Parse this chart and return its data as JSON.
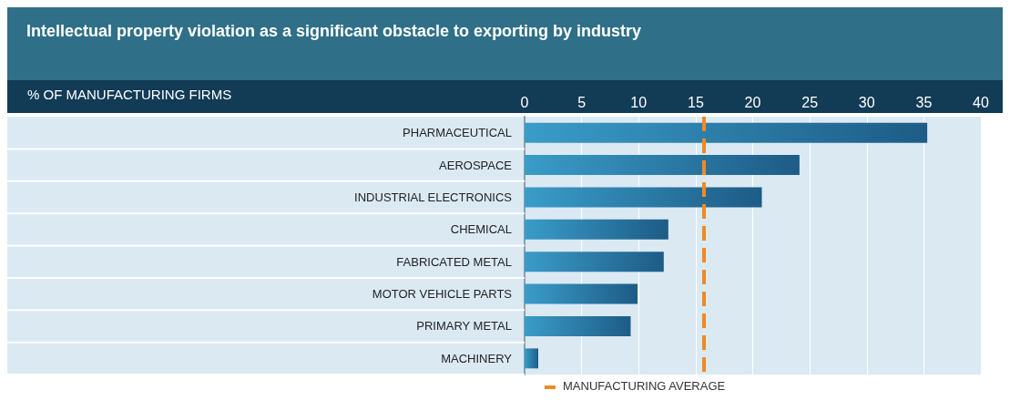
{
  "chart_data": {
    "type": "bar",
    "orientation": "horizontal",
    "title": "Intellectual property violation as a significant obstacle to exporting by industry",
    "annotations": [
      "% OF MANUFACTURING FIRMS"
    ],
    "categories": [
      "PHARMACEUTICAL",
      "AEROSPACE",
      "INDUSTRIAL ELECTRONICS",
      "CHEMICAL",
      "FABRICATED METAL",
      "MOTOR VEHICLE PARTS",
      "PRIMARY METAL",
      "MACHINERY"
    ],
    "values": [
      35.3,
      24.1,
      20.8,
      12.6,
      12.2,
      9.9,
      9.3,
      1.2
    ],
    "color": "#1d5c86",
    "xlim": [
      0,
      40
    ],
    "xticks": [
      0,
      5,
      10,
      15,
      20,
      25,
      30,
      35,
      40
    ],
    "grid": "x",
    "ref_lines": [
      {
        "axis": "x",
        "value": 15.7,
        "label": "MANUFACTURING AVERAGE",
        "color": "#f08a24",
        "line_style": "dashed"
      }
    ]
  }
}
